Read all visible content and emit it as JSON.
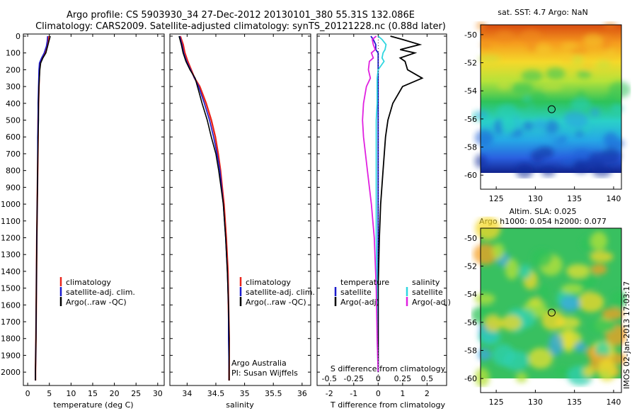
{
  "title": {
    "line1": "Argo profile: CS 5903930_34 27-Dec-2012 20130101_380 55.31S 132.086E",
    "line2": "Climatology: CARS2009. Satellite-adjusted climatology: synTS_20121228.nc (0.88d later)"
  },
  "colors": {
    "climatology": "#e8251b",
    "satellite": "#1a1acc",
    "argo": "#000000",
    "sat_salinity": "#2fd6e0",
    "argo_salinity": "#e020e0"
  },
  "chart_data": [
    {
      "type": "line",
      "panel": "temperature",
      "ylim": [
        2100,
        0
      ],
      "y_ticks": [
        0,
        100,
        200,
        300,
        400,
        500,
        600,
        700,
        800,
        900,
        1000,
        1100,
        1200,
        1300,
        1400,
        1500,
        1600,
        1700,
        1800,
        1900,
        2000
      ],
      "xlim": [
        -1,
        31.5
      ],
      "x_ticks": [
        0,
        5,
        10,
        15,
        20,
        25,
        30
      ],
      "xlabel": "temperature (deg C)",
      "legend": [
        "climatology",
        "satellite-adj. clim.",
        "Argo(..raw -QC)"
      ],
      "legend_placement": "center",
      "depth": [
        0,
        30,
        60,
        100,
        130,
        160,
        200,
        300,
        400,
        500,
        600,
        800,
        1000,
        1200,
        1500,
        1800,
        2000,
        2050
      ],
      "series": [
        {
          "name": "climatology",
          "values": [
            4.8,
            4.7,
            4.5,
            4.0,
            3.4,
            2.9,
            2.7,
            2.6,
            2.5,
            2.4,
            2.4,
            2.3,
            2.2,
            2.1,
            2.0,
            1.9,
            1.8,
            1.8
          ]
        },
        {
          "name": "satellite-adj. clim.",
          "values": [
            4.6,
            4.5,
            4.3,
            3.8,
            3.2,
            2.7,
            2.6,
            2.5,
            2.4,
            2.4,
            2.3,
            2.3,
            2.2,
            2.1,
            2.0,
            1.9,
            1.8,
            1.8
          ]
        },
        {
          "name": "Argo(..raw -QC)",
          "values": [
            5.2,
            4.9,
            4.6,
            4.2,
            3.5,
            3.0,
            2.8,
            2.6,
            2.5,
            2.5,
            2.4,
            2.3,
            2.2,
            2.1,
            2.0,
            1.9,
            1.8,
            1.8
          ]
        }
      ]
    },
    {
      "type": "line",
      "panel": "salinity",
      "ylim": [
        2100,
        0
      ],
      "xlim": [
        33.7,
        36.15
      ],
      "x_ticks": [
        34,
        34.5,
        35,
        35.5,
        36
      ],
      "xlabel": "salinity",
      "legend": [
        "climatology",
        "satellite-adj. clim.",
        "Argo(..raw -QC)"
      ],
      "legend_placement": "center-right",
      "annotation": [
        "Argo Australia",
        "PI: Susan Wijffels"
      ],
      "depth": [
        0,
        50,
        100,
        150,
        200,
        250,
        300,
        400,
        500,
        600,
        700,
        800,
        900,
        1000,
        1200,
        1400,
        1600,
        1800,
        2000,
        2050
      ],
      "series": [
        {
          "name": "climatology",
          "values": [
            33.88,
            33.93,
            33.96,
            34.01,
            34.07,
            34.13,
            34.22,
            34.33,
            34.42,
            34.49,
            34.54,
            34.58,
            34.61,
            34.64,
            34.68,
            34.71,
            34.72,
            34.73,
            34.73,
            34.73
          ]
        },
        {
          "name": "satellite-adj. clim.",
          "values": [
            33.87,
            33.91,
            33.94,
            33.99,
            34.06,
            34.13,
            34.2,
            34.3,
            34.39,
            34.46,
            34.52,
            34.57,
            34.6,
            34.63,
            34.67,
            34.7,
            34.72,
            34.72,
            34.73,
            34.73
          ]
        },
        {
          "name": "Argo(..raw -QC)",
          "values": [
            33.86,
            33.9,
            33.93,
            33.98,
            34.05,
            34.14,
            34.18,
            34.26,
            34.35,
            34.42,
            34.5,
            34.55,
            34.59,
            34.63,
            34.67,
            34.7,
            34.72,
            34.73,
            34.73,
            34.73
          ]
        }
      ]
    },
    {
      "type": "line",
      "panel": "differences",
      "ylim": [
        2100,
        0
      ],
      "xlim": [
        -2.5,
        2.8
      ],
      "x_ticks_T": [
        -2,
        -1,
        0,
        1,
        2
      ],
      "x_ticks_S": [
        -0.5,
        -0.25,
        0,
        0.25,
        0.5
      ],
      "xlabel": "T difference from climatology",
      "xlabel_top": "S difference from climatology",
      "legend": {
        "temperature": {
          "title": "temperature",
          "items": [
            "satellite",
            "Argo(-adj)"
          ]
        },
        "salinity": {
          "title": "salinity",
          "items": [
            "satellite",
            "Argo(-adj)"
          ]
        }
      },
      "depth": [
        0,
        20,
        50,
        80,
        100,
        130,
        150,
        200,
        250,
        300,
        400,
        500,
        600,
        800,
        1000,
        1200,
        1500,
        1800,
        2000
      ],
      "series": [
        {
          "name": "temperature satellite",
          "values": [
            -0.3,
            -0.2,
            -0.1,
            -0.1,
            0.0,
            0.0,
            0.0,
            0.0,
            0.0,
            0.0,
            0.0,
            0.0,
            0.0,
            0.0,
            0.0,
            0.0,
            0.0,
            0.0,
            0.0
          ]
        },
        {
          "name": "temperature Argo(-adj)",
          "values": [
            0.5,
            1.0,
            1.7,
            0.9,
            1.5,
            0.9,
            1.1,
            1.2,
            1.8,
            1.0,
            0.6,
            0.4,
            0.3,
            0.2,
            0.1,
            0.05,
            0.0,
            0.0,
            0.0
          ]
        },
        {
          "name": "salinity satellite",
          "values": [
            0.0,
            0.04,
            0.08,
            0.07,
            0.05,
            0.04,
            0.06,
            0.0,
            -0.01,
            -0.01,
            -0.01,
            -0.02,
            -0.02,
            -0.02,
            -0.02,
            -0.02,
            -0.01,
            -0.01,
            0.0
          ]
        },
        {
          "name": "salinity Argo(-adj)",
          "values": [
            -0.02,
            -0.06,
            -0.05,
            -0.03,
            -0.07,
            -0.05,
            -0.09,
            -0.1,
            -0.08,
            -0.12,
            -0.15,
            -0.16,
            -0.15,
            -0.11,
            -0.07,
            -0.04,
            -0.02,
            -0.01,
            0.0
          ]
        }
      ]
    },
    {
      "type": "heatmap",
      "panel": "sst-map",
      "title": "sat. SST: 4.7  Argo: NaN",
      "xlim": [
        123,
        141
      ],
      "ylim": [
        -61,
        -49.3
      ],
      "x_ticks": [
        125,
        130,
        135,
        140
      ],
      "y_ticks": [
        -50,
        -52,
        -54,
        -56,
        -58,
        -60
      ],
      "marker": {
        "lon": 132.086,
        "lat": -55.31
      },
      "colormap": "jet",
      "gradient": "warm in north, cold in south"
    },
    {
      "type": "heatmap",
      "panel": "sla-map",
      "title_line1": "Altim. SLA: 0.025",
      "title_line2": "Argo h1000: 0.054 h2000: 0.077",
      "xlim": [
        123,
        141
      ],
      "ylim": [
        -61,
        -49.3
      ],
      "x_ticks": [
        125,
        130,
        135,
        140
      ],
      "y_ticks": [
        -50,
        -52,
        -54,
        -56,
        -58,
        -60
      ],
      "marker": {
        "lon": 132.086,
        "lat": -55.31
      },
      "colormap": "jet",
      "side_label": "IMOS 02-Jan-2013 17:03:17"
    }
  ]
}
